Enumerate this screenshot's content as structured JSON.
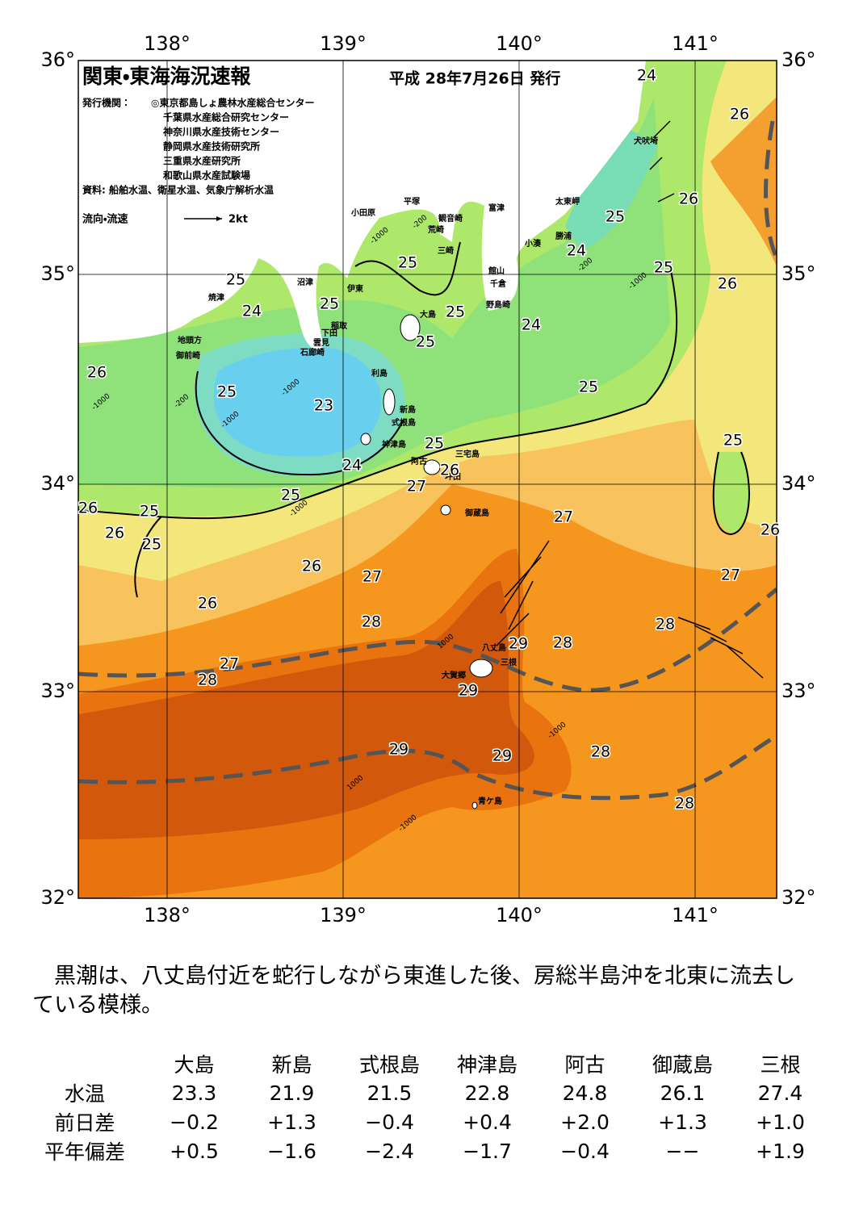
{
  "map": {
    "title": "関東・東海海況速報",
    "issued": "平成 28年7月26日 発行",
    "issuers_label": "発行機関：",
    "issuers": [
      "◎東京都島しょ農林水産総合センター",
      "千葉県水産総合研究センター",
      "神奈川県水産技術センター",
      "静岡県水産技術研究所",
      "三重県水産研究所",
      "和歌山県水産試験場"
    ],
    "sources": "資料: 船舶水温、衛星水温、気象庁解析水温",
    "legend_label": "流向・流速",
    "legend_scale": "2kt",
    "lon_labels": [
      "138°",
      "139°",
      "140°",
      "141°"
    ],
    "lat_labels": [
      "36°",
      "35°",
      "34°",
      "33°",
      "32°"
    ],
    "places": [
      "犬吠埼",
      "太東岬",
      "勝浦",
      "小湊",
      "富津",
      "館山",
      "千倉",
      "野島崎",
      "観音崎",
      "荒崎",
      "三崎",
      "平塚",
      "小田原",
      "沼津",
      "伊東",
      "焼津",
      "稲取",
      "下田",
      "雲見",
      "石廊崎",
      "地頭方",
      "御前崎",
      "大島",
      "利島",
      "新島",
      "式根島",
      "神津島",
      "三宅島",
      "阿古",
      "坪田",
      "御蔵島",
      "八丈島",
      "三根",
      "大賀郷",
      "青ケ島"
    ],
    "isotherms": [
      "24",
      "26",
      "26",
      "25",
      "24",
      "25",
      "26",
      "25",
      "25",
      "24",
      "25",
      "25",
      "25",
      "24",
      "26",
      "25",
      "23",
      "25",
      "25",
      "25",
      "26",
      "24",
      "27",
      "25",
      "26",
      "25",
      "26",
      "25",
      "27",
      "26",
      "26",
      "27",
      "27",
      "26",
      "28",
      "28",
      "29",
      "28",
      "27",
      "28",
      "29",
      "29",
      "29",
      "28",
      "28"
    ],
    "depth_labels": [
      "-200",
      "-1000",
      "-200",
      "-1000",
      "-1000",
      "-200",
      "-1000",
      "-1000",
      "1000",
      "-1000",
      "1000",
      "-1000",
      "-1000"
    ]
  },
  "summary": "黒潮は、八丈島付近を蛇行しながら東進した後、房総半島沖を北東に流去している模様。",
  "table": {
    "columns": [
      "大島",
      "新島",
      "式根島",
      "神津島",
      "阿古",
      "御蔵島",
      "三根"
    ],
    "rows": [
      {
        "label": "水温",
        "values": [
          "23.3",
          "21.9",
          "21.5",
          "22.8",
          "24.8",
          "26.1",
          "27.4"
        ]
      },
      {
        "label": "前日差",
        "values": [
          "−0.2",
          "+1.3",
          "−0.4",
          "+0.4",
          "+2.0",
          "+1.3",
          "+1.0"
        ]
      },
      {
        "label": "平年偏差",
        "values": [
          "+0.5",
          "−1.6",
          "−2.4",
          "−1.7",
          "−0.4",
          "−−",
          "+1.9"
        ]
      }
    ]
  }
}
